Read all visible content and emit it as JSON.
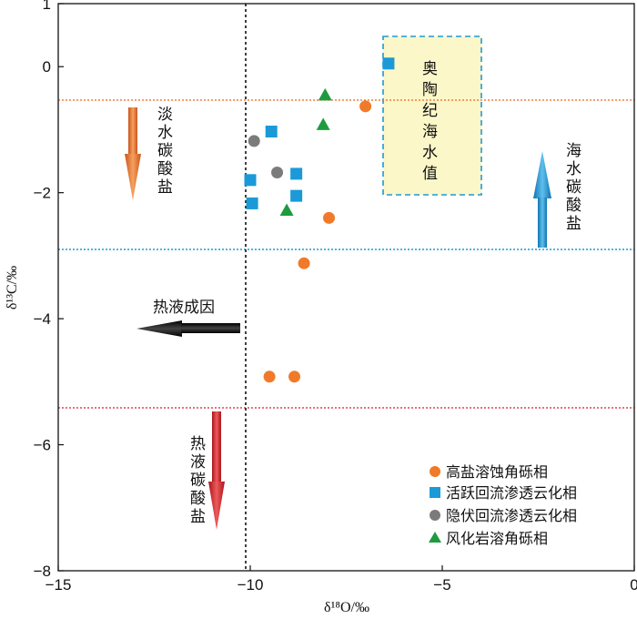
{
  "chart_data": {
    "type": "scatter",
    "xlabel": "δ¹⁸O/‰",
    "ylabel": "δ¹³C/‰",
    "xlim": [
      -15,
      0
    ],
    "ylim": [
      -8,
      1
    ],
    "xticks": [
      -15,
      -10,
      -5,
      0
    ],
    "xtick_labels": [
      "−15",
      "−10",
      "−5",
      "0"
    ],
    "yticks": [
      -8,
      -6,
      -4,
      -2,
      0,
      1
    ],
    "ytick_labels": [
      "−8",
      "−6",
      "−4",
      "−2",
      "0",
      "1"
    ],
    "grid": false,
    "legend_position": "bottom-right",
    "series": [
      {
        "name": "高盐溶蚀角砾相",
        "marker": "circle",
        "color": "#f07a2a",
        "points": [
          [
            -7.0,
            -0.63
          ],
          [
            -7.95,
            -2.4
          ],
          [
            -8.6,
            -3.12
          ],
          [
            -9.5,
            -4.92
          ],
          [
            -8.85,
            -4.92
          ]
        ]
      },
      {
        "name": "活跃回流渗透云化相",
        "marker": "square",
        "color": "#1b9ad7",
        "points": [
          [
            -6.4,
            0.05
          ],
          [
            -9.45,
            -1.03
          ],
          [
            -8.8,
            -1.7
          ],
          [
            -8.8,
            -2.05
          ],
          [
            -10.0,
            -1.8
          ],
          [
            -9.95,
            -2.17
          ]
        ]
      },
      {
        "name": "隐伏回流渗透云化相",
        "marker": "circle",
        "color": "#7b7b7b",
        "points": [
          [
            -9.9,
            -1.18
          ],
          [
            -9.3,
            -1.68
          ]
        ]
      },
      {
        "name": "风化岩溶角砾相",
        "marker": "triangle",
        "color": "#1f9b3f",
        "points": [
          [
            -8.05,
            -0.45
          ],
          [
            -8.1,
            -0.92
          ],
          [
            -9.05,
            -2.28
          ]
        ]
      }
    ],
    "reference_lines": [
      {
        "axis": "y",
        "value": -0.53,
        "color": "#e8661e",
        "style": "dotted"
      },
      {
        "axis": "y",
        "value": -2.88,
        "color": "#1b9ad7",
        "style": "dotted"
      },
      {
        "axis": "y",
        "value": -5.77,
        "color": "#d81e2c",
        "style": "dotted"
      },
      {
        "axis": "x",
        "value": -10,
        "color": "#111111",
        "style": "dotted"
      }
    ],
    "region": {
      "label": "奥陶纪海水值",
      "x": [
        -6.6,
        -4.0
      ],
      "y": [
        -2.0,
        0.47
      ],
      "fill": "#fcf7c8",
      "border": "#1b9ad7"
    },
    "annotations": [
      {
        "text": "淡水碳酸盐",
        "arrow": "down",
        "color": "#f07a2a"
      },
      {
        "text": "海水碳酸盐",
        "arrow": "up",
        "color": "#1b9ad7"
      },
      {
        "text": "热液成因",
        "arrow": "left",
        "color": "#111111"
      },
      {
        "text": "热液碳酸盐",
        "arrow": "down",
        "color": "#e02a2a"
      }
    ]
  }
}
